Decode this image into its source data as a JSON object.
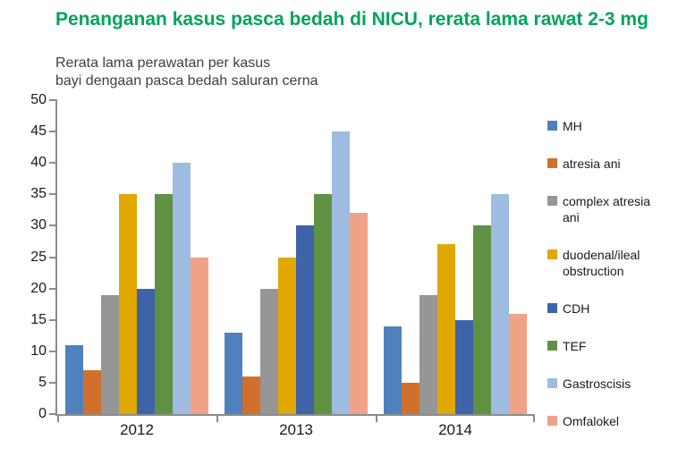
{
  "title": {
    "text": "Penanganan kasus pasca bedah di NICU, rerata lama rawat 2-3 mg",
    "color": "#00A45B"
  },
  "subtitle": {
    "line1": "Rerata lama perawatan per kasus",
    "line2": "bayi dengaan pasca bedah saluran cerna"
  },
  "chart_data": {
    "type": "bar",
    "grouped": true,
    "title": "Rerata lama perawatan per kasus bayi dengaan pasca bedah saluran cerna",
    "categories": [
      "2012",
      "2013",
      "2014"
    ],
    "series": [
      {
        "name": "MH",
        "color": "#4E81BD",
        "values": [
          11,
          13,
          14
        ]
      },
      {
        "name": "atresia ani",
        "color": "#D0702C",
        "values": [
          7,
          6,
          5
        ]
      },
      {
        "name": "complex atresia ani",
        "color": "#969696",
        "values": [
          19,
          20,
          19
        ]
      },
      {
        "name": "duodenal/ileal obstruction",
        "color": "#E0A800",
        "values": [
          35,
          25,
          27
        ]
      },
      {
        "name": "CDH",
        "color": "#3E63A9",
        "values": [
          20,
          30,
          15
        ]
      },
      {
        "name": "TEF",
        "color": "#609143",
        "values": [
          35,
          35,
          30
        ]
      },
      {
        "name": "Gastroscisis",
        "color": "#9DBCE0",
        "values": [
          40,
          45,
          35
        ]
      },
      {
        "name": "Omfalokel",
        "color": "#F0A287",
        "values": [
          25,
          32,
          16
        ]
      }
    ],
    "ylim": [
      0,
      50
    ],
    "ytick_step": 5,
    "grid": false,
    "legend_position": "right",
    "xlabel": "",
    "ylabel": "",
    "axis_color": "#8c8c8c"
  }
}
